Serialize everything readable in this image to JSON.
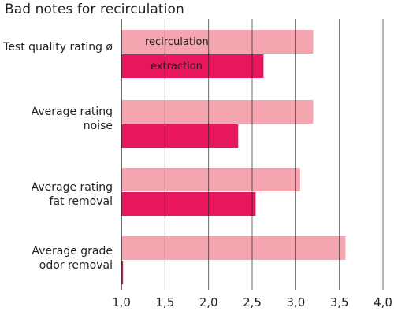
{
  "chart_data": {
    "type": "bar",
    "orientation": "horizontal",
    "title": "Bad notes for recirculation",
    "categories": [
      [
        "Test quality rating ø"
      ],
      [
        "Average rating",
        "noise"
      ],
      [
        "Average rating",
        "fat removal"
      ],
      [
        "Average grade",
        "odor removal"
      ]
    ],
    "series": [
      {
        "name": "recirculation",
        "color": "#f4a5b0",
        "values": [
          3.2,
          3.2,
          3.05,
          3.57
        ]
      },
      {
        "name": "extraction",
        "color": "#e8175d",
        "values": [
          2.63,
          2.34,
          2.54,
          1.02
        ]
      }
    ],
    "xlim": [
      1.0,
      4.0
    ],
    "xticks": [
      "1,0",
      "1,5",
      "2,0",
      "2,5",
      "3,0",
      "3,5",
      "4,0"
    ],
    "grid": "vertical",
    "axis_color": "#231f20",
    "grid_color": "#231f20",
    "legend": "inside first category bars"
  }
}
